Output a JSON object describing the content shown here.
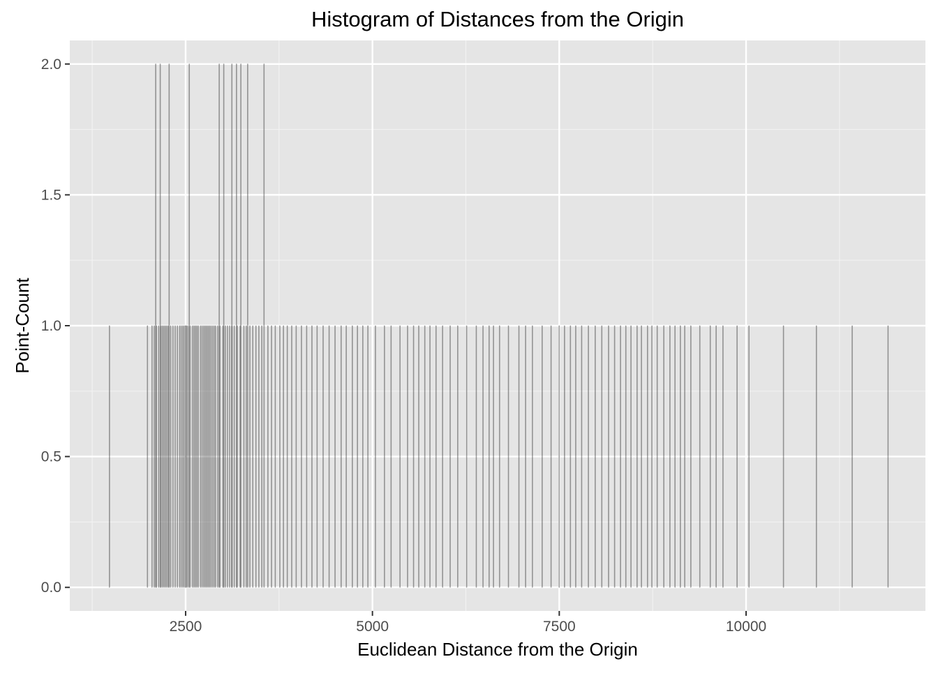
{
  "chart_data": {
    "type": "bar",
    "title": "Histogram of Distances from the Origin",
    "xlabel": "Euclidean Distance from the Origin",
    "ylabel": "Point-Count",
    "xlim": [
      950,
      12400
    ],
    "ylim": [
      -0.09,
      2.09
    ],
    "x_ticks": [
      2500,
      5000,
      7500,
      10000
    ],
    "x_tick_labels": [
      "2500",
      "5000",
      "7500",
      "10000"
    ],
    "y_ticks": [
      0,
      0.5,
      1,
      1.5,
      2
    ],
    "y_tick_labels": [
      "0.0",
      "0.5",
      "1.0",
      "1.5",
      "2.0"
    ],
    "grid": true,
    "legend": "none",
    "colors": {
      "panel_background": "#e5e5e5",
      "grid_major": "#ffffff",
      "grid_minor": "#f2f2f2",
      "bar_outline": "#1f1f1f",
      "bar_fill": "#595959"
    },
    "bars_count_1": [
      1480,
      1990,
      2050,
      2080,
      2110,
      2140,
      2170,
      2190,
      2210,
      2230,
      2250,
      2270,
      2300,
      2330,
      2360,
      2390,
      2420,
      2440,
      2460,
      2480,
      2500,
      2510,
      2530,
      2560,
      2590,
      2610,
      2630,
      2650,
      2670,
      2700,
      2720,
      2740,
      2760,
      2780,
      2800,
      2820,
      2840,
      2860,
      2880,
      2900,
      2930,
      2960,
      3000,
      3030,
      3060,
      3090,
      3120,
      3150,
      3190,
      3230,
      3280,
      3310,
      3360,
      3400,
      3440,
      3480,
      3520,
      3600,
      3650,
      3700,
      3760,
      3810,
      3860,
      3920,
      3980,
      4050,
      4120,
      4190,
      4260,
      4340,
      4420,
      4500,
      4580,
      4650,
      4730,
      4800,
      4870,
      4940,
      5040,
      5160,
      5250,
      5370,
      5470,
      5550,
      5620,
      5700,
      5770,
      5850,
      5940,
      6040,
      6140,
      6260,
      6390,
      6480,
      6560,
      6620,
      6700,
      6820,
      6960,
      7050,
      7140,
      7270,
      7390,
      7500,
      7570,
      7650,
      7720,
      7800,
      7890,
      7980,
      8070,
      8160,
      8240,
      8320,
      8390,
      8460,
      8540,
      8600,
      8680,
      8740,
      8810,
      8900,
      8980,
      9050,
      9120,
      9180,
      9260,
      9380,
      9520,
      9600,
      9690,
      9880,
      10040,
      10500,
      10940,
      11420,
      11900
    ],
    "bars_count_2": [
      2100,
      2160,
      2280,
      2550,
      2950,
      3010,
      3120,
      3180,
      3240,
      3330,
      3550
    ]
  }
}
